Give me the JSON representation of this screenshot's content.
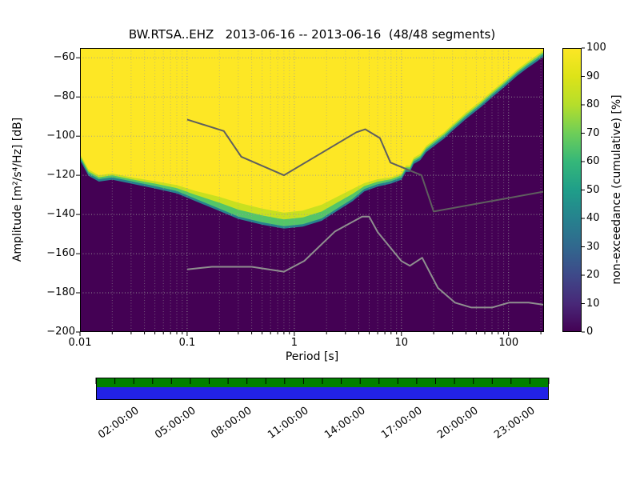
{
  "chart_data": {
    "type": "heatmap",
    "title": "BW.RTSA..EHZ   2013-06-16 -- 2013-06-16  (48/48 segments)",
    "xlabel": "Period [s]",
    "ylabel": "Amplitude [m²/s⁴/Hz] [dB]",
    "x_scale": "log",
    "xlim": [
      0.01,
      214
    ],
    "ylim": [
      -200,
      -55
    ],
    "x_ticks": {
      "values": [
        0.01,
        0.1,
        1,
        10,
        100
      ],
      "labels": [
        "0.01",
        "0.1",
        "1",
        "10",
        "100"
      ]
    },
    "y_ticks": {
      "values": [
        -60,
        -80,
        -100,
        -120,
        -140,
        -160,
        -180,
        -200
      ],
      "labels": [
        "−60",
        "−80",
        "−100",
        "−120",
        "−140",
        "−160",
        "−180",
        "−200"
      ]
    },
    "grid": {
      "color": "#999999",
      "dash": "1,2.5"
    },
    "colormap": {
      "name": "viridis",
      "stops": [
        [
          0,
          "#440154"
        ],
        [
          10,
          "#482878"
        ],
        [
          20,
          "#3e4989"
        ],
        [
          30,
          "#31688e"
        ],
        [
          40,
          "#26828e"
        ],
        [
          50,
          "#1f9e89"
        ],
        [
          60,
          "#35b779"
        ],
        [
          70,
          "#6ece58"
        ],
        [
          80,
          "#b5de2b"
        ],
        [
          90,
          "#dde318"
        ],
        [
          100,
          "#fde725"
        ]
      ]
    },
    "colorbar": {
      "label": "non-exceedance (cumulative) [%]",
      "tick_values": [
        0,
        10,
        20,
        30,
        40,
        50,
        60,
        70,
        80,
        90,
        100
      ],
      "tick_labels": [
        "0",
        "10",
        "20",
        "30",
        "40",
        "50",
        "60",
        "70",
        "80",
        "90",
        "100"
      ]
    },
    "field": {
      "background_value": 0,
      "background_color": "#440154",
      "top_value": 100,
      "top_color": "#fde725",
      "band_colors": {
        "mid": "#c8e020",
        "green": "#54c568",
        "teal": "#26828e"
      },
      "boundary_periods": [
        0.01,
        0.012,
        0.015,
        0.02,
        0.03,
        0.05,
        0.08,
        0.12,
        0.2,
        0.3,
        0.5,
        0.8,
        1.2,
        1.8,
        2.5,
        3.5,
        4.5,
        6,
        8,
        10,
        11,
        12,
        13,
        15,
        17,
        20,
        25,
        30,
        40,
        55,
        70,
        90,
        120,
        150,
        180,
        214
      ],
      "yellow_db": [
        -109,
        -117,
        -120,
        -119,
        -121,
        -123,
        -125,
        -128,
        -131,
        -134,
        -137,
        -139,
        -138,
        -135,
        -131,
        -127,
        -124,
        -122,
        -121,
        -119,
        -115,
        -115,
        -111,
        -109,
        -105,
        -102,
        -98,
        -94,
        -88,
        -82,
        -77,
        -72,
        -66,
        -62,
        -59,
        -56
      ],
      "green_db": [
        -111,
        -119,
        -122,
        -121,
        -123,
        -125.5,
        -128,
        -132,
        -137,
        -141,
        -144,
        -146,
        -145,
        -142,
        -137,
        -132,
        -127,
        -124.5,
        -123,
        -121,
        -117,
        -117,
        -113,
        -111,
        -107,
        -104,
        -100,
        -96,
        -90,
        -84,
        -79,
        -74,
        -68,
        -64,
        -61,
        -58
      ]
    },
    "noise_models": {
      "color_high": "#5f5f5f",
      "color_low": "#8f8f8f",
      "width": 2,
      "nhnm": [
        [
          0.1,
          -91.5
        ],
        [
          0.22,
          -97.4
        ],
        [
          0.32,
          -110.5
        ],
        [
          0.8,
          -120
        ],
        [
          3.8,
          -98
        ],
        [
          4.6,
          -96.5
        ],
        [
          6.3,
          -101
        ],
        [
          7.9,
          -113.5
        ],
        [
          15.4,
          -120
        ],
        [
          20,
          -138.5
        ],
        [
          214,
          -128.3
        ]
      ],
      "nlnm": [
        [
          0.1,
          -168
        ],
        [
          0.17,
          -166.7
        ],
        [
          0.4,
          -166.7
        ],
        [
          0.8,
          -169.2
        ],
        [
          1.24,
          -163.7
        ],
        [
          2.4,
          -148.6
        ],
        [
          4.3,
          -141.1
        ],
        [
          5,
          -141.1
        ],
        [
          6,
          -149
        ],
        [
          10,
          -163.8
        ],
        [
          12,
          -166.2
        ],
        [
          15.6,
          -162.1
        ],
        [
          21.9,
          -177.5
        ],
        [
          31.6,
          -185
        ],
        [
          45,
          -187.5
        ],
        [
          70,
          -187.5
        ],
        [
          101,
          -185
        ],
        [
          154,
          -185
        ],
        [
          214,
          -186.1
        ]
      ]
    },
    "time_strip": {
      "start_hour": 0,
      "end_hour": 24,
      "tick_interval_hours": 1,
      "band_colors": [
        "#008000",
        "#2222e6"
      ],
      "label_hours": [
        2,
        5,
        8,
        11,
        14,
        17,
        20,
        23
      ],
      "labels": [
        "02:00:00",
        "05:00:00",
        "08:00:00",
        "11:00:00",
        "14:00:00",
        "17:00:00",
        "20:00:00",
        "23:00:00"
      ]
    }
  }
}
